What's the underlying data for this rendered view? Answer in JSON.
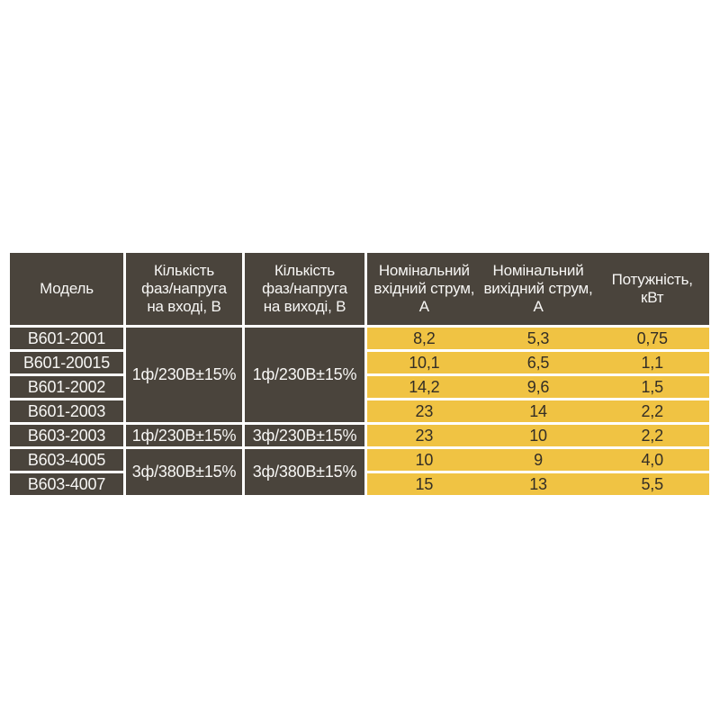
{
  "colors": {
    "page_background": "#ffffff",
    "cell_dark": "#4a443c",
    "cell_yellow": "#f0c343",
    "dark_cell_text": "#f7f6f4",
    "yellow_cell_text": "#332e26",
    "separator": "#ffffff"
  },
  "table": {
    "headers": {
      "model": "Модель",
      "input_phase_voltage": "Кількість\nфаз/напруга\nна вході, В",
      "output_phase_voltage": "Кількість\nфаз/напруга\nна виході, В",
      "input_current": "Номінальний\nвхідний струм,\nА",
      "output_current": "Номінальний\nвихідний струм,\nА",
      "power": "Потужність,\nкВт"
    },
    "models": [
      "В601-2001",
      "В601-20015",
      "В601-2002",
      "В601-2003",
      "В603-2003",
      "В603-4005",
      "В603-4007"
    ],
    "voltage_cells": {
      "input_group1": "1ф/230В±15%",
      "output_group1": "1ф/230В±15%",
      "input_row5": "1ф/230В±15%",
      "output_row5": "3ф/230В±15%",
      "input_group2": "3ф/380В±15%",
      "output_group2": "3ф/380В±15%"
    },
    "rows": [
      {
        "input_current": "8,2",
        "output_current": "5,3",
        "power": "0,75"
      },
      {
        "input_current": "10,1",
        "output_current": "6,5",
        "power": "1,1"
      },
      {
        "input_current": "14,2",
        "output_current": "9,6",
        "power": "1,5"
      },
      {
        "input_current": "23",
        "output_current": "14",
        "power": "2,2"
      },
      {
        "input_current": "23",
        "output_current": "10",
        "power": "2,2"
      },
      {
        "input_current": "10",
        "output_current": "9",
        "power": "4,0"
      },
      {
        "input_current": "15",
        "output_current": "13",
        "power": "5,5"
      }
    ]
  },
  "chart_data": {
    "type": "table",
    "title": "",
    "columns": [
      "Модель",
      "Кількість фаз/напруга на вході, В",
      "Кількість фаз/напруга на виході, В",
      "Номінальний вхідний струм, А",
      "Номінальний вихідний струм, А",
      "Потужність, кВт"
    ],
    "rows": [
      [
        "В601-2001",
        "1ф/230В±15%",
        "1ф/230В±15%",
        "8,2",
        "5,3",
        "0,75"
      ],
      [
        "В601-20015",
        "1ф/230В±15%",
        "1ф/230В±15%",
        "10,1",
        "6,5",
        "1,1"
      ],
      [
        "В601-2002",
        "1ф/230В±15%",
        "1ф/230В±15%",
        "14,2",
        "9,6",
        "1,5"
      ],
      [
        "В601-2003",
        "1ф/230В±15%",
        "1ф/230В±15%",
        "23",
        "14",
        "2,2"
      ],
      [
        "В603-2003",
        "1ф/230В±15%",
        "3ф/230В±15%",
        "23",
        "10",
        "2,2"
      ],
      [
        "В603-4005",
        "3ф/380В±15%",
        "3ф/380В±15%",
        "10",
        "9",
        "4,0"
      ],
      [
        "В603-4007",
        "3ф/380В±15%",
        "3ф/380В±15%",
        "15",
        "13",
        "5,5"
      ]
    ],
    "merged_cells": [
      "input voltage column merged for rows 1-4 (1ф/230В±15%)",
      "output voltage column merged for rows 1-4 (1ф/230В±15%)",
      "input voltage column merged for rows 6-7 (3ф/380В±15%)",
      "output voltage column merged for rows 6-7 (3ф/380В±15%)",
      "last three header columns share one dark block without dividers",
      "current/power data area has no vertical dividers (yellow bands)"
    ],
    "layout": "dark header and left columns (#4a443c) with white text; numeric data area in golden yellow bands (#f0c343) with dark text; white 3px separators"
  }
}
